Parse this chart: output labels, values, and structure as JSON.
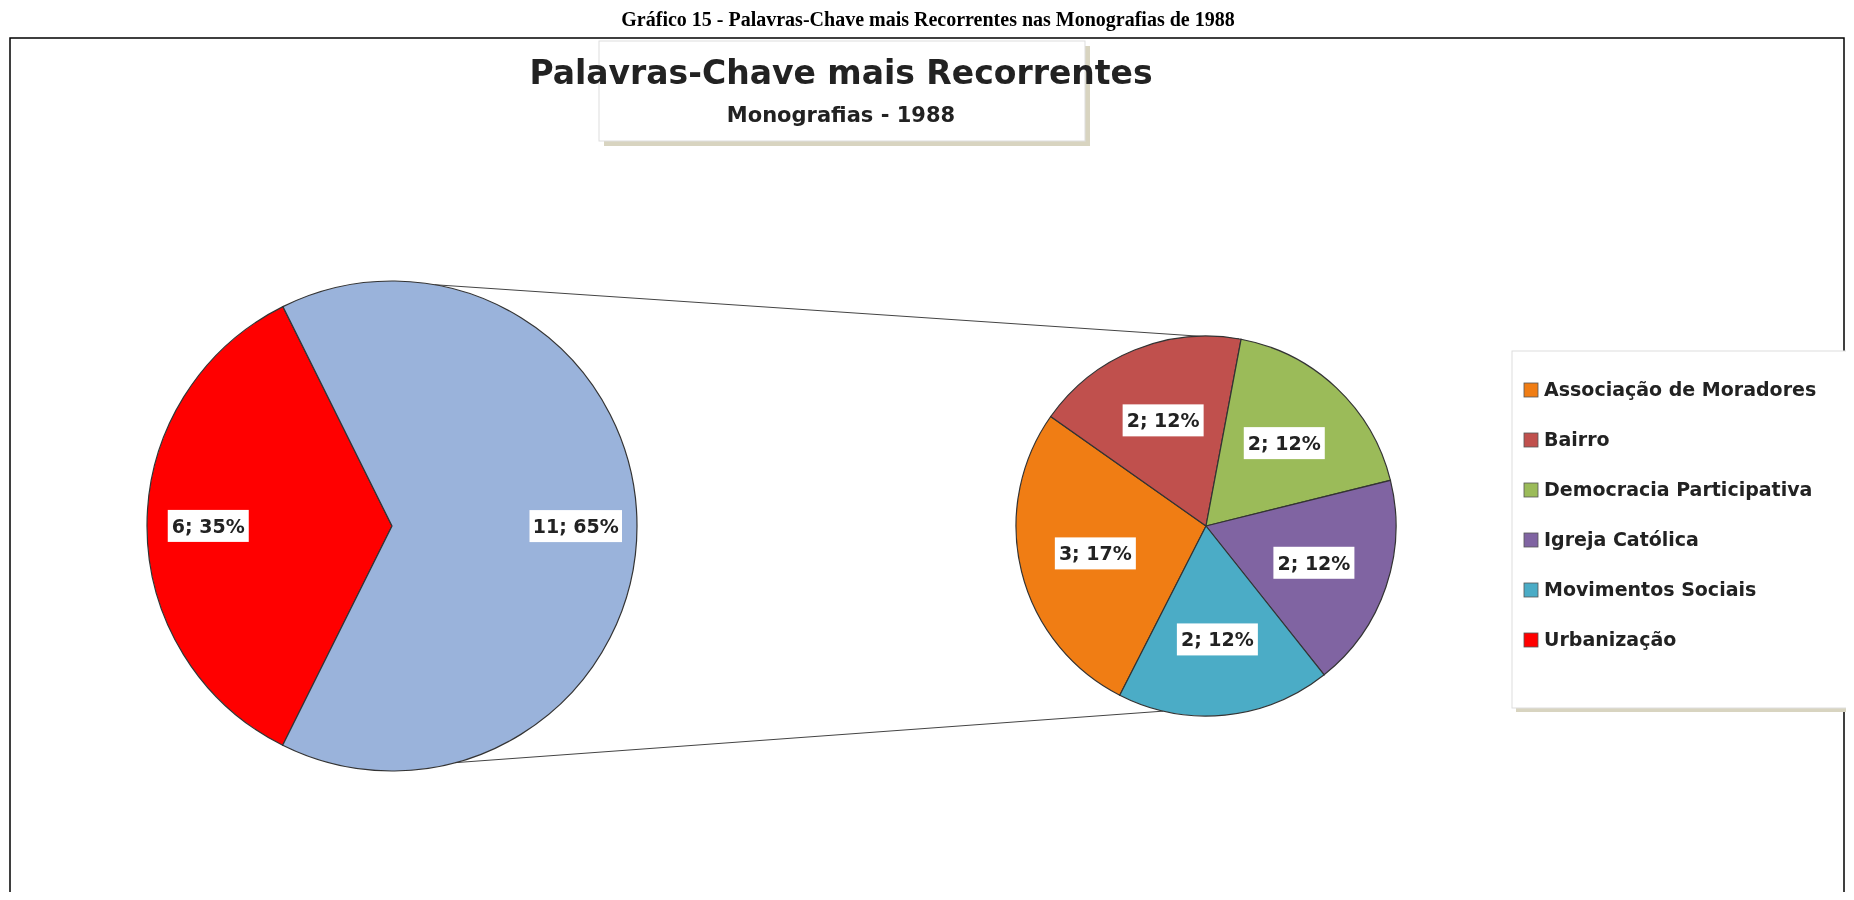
{
  "chart_data": [
    {
      "type": "pie",
      "title": "Palavras-Chave mais Recorrentes",
      "subtitle": "Monografias - 1988",
      "annotations": [
        "Gráfico 15 - Palavras-Chave mais Recorrentes nas Monografias de 1988"
      ],
      "categories": [
        "Urbanização",
        null
      ],
      "values": [
        6,
        11
      ],
      "colors": [
        "#ff0000",
        "#9ab3db"
      ],
      "value_labels": [
        "6; 35%",
        "11; 65%"
      ],
      "legend": "right"
    },
    {
      "type": "pie",
      "categories": [
        "Associação de Moradores",
        "Bairro",
        "Democracia Participativa",
        "Igreja Católica",
        "Movimentos Sociais"
      ],
      "values": [
        3,
        2,
        2,
        2,
        2
      ],
      "colors": [
        "#f07d14",
        "#c0504d",
        "#9bbb59",
        "#8064a2",
        "#4bacc6"
      ],
      "value_labels": [
        "3; 17%",
        "2; 12%",
        "2; 12%",
        "2; 12%",
        "2; 12%"
      ],
      "legend": "right"
    }
  ]
}
